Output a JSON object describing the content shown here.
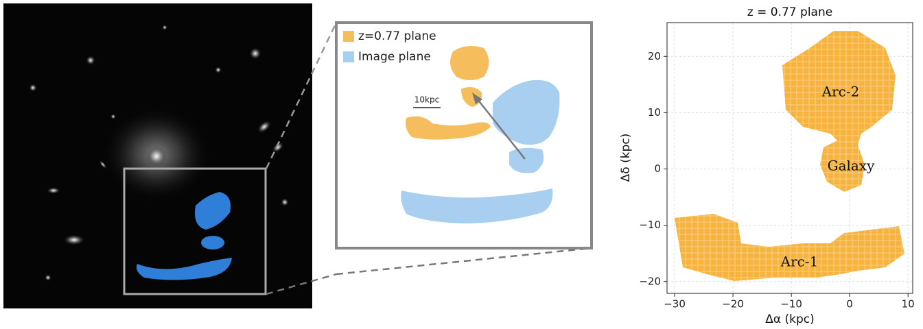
{
  "chart_data": {
    "type": "region",
    "title": "z = 0.77 plane",
    "x_label": "Δα (kpc)",
    "y_label": "Δδ (kpc)",
    "color": "#f6b43f",
    "grid": true,
    "xlim": [
      -31.3,
      10.8
    ],
    "ylim": [
      -22.1,
      26
    ],
    "xticks": [
      {
        "value": -30,
        "label": "−30"
      },
      {
        "value": -20,
        "label": "−20"
      },
      {
        "value": -10,
        "label": "−10"
      },
      0,
      10
    ],
    "yticks": [
      {
        "value": -20,
        "label": "−20"
      },
      {
        "value": -10,
        "label": "−10"
      },
      0,
      10,
      20
    ],
    "annotations": [
      "Arc-2",
      "Galaxy",
      "Arc-1"
    ]
  },
  "inset": {
    "legend": [
      {
        "name": "z=0.77 plane",
        "color": "#f6bd5c"
      },
      {
        "name": "Image plane",
        "color": "#a9cff0"
      }
    ],
    "scale_bar": "10kpc"
  }
}
